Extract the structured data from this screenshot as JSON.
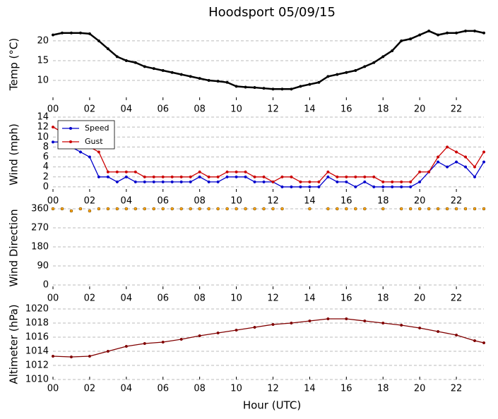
{
  "title": "Hoodsport 05/09/15",
  "xlabel": "Hour (UTC)",
  "chart_data": [
    {
      "type": "line",
      "ylabel": "Temp (°C)",
      "color": "#000000",
      "x": [
        0,
        0.5,
        1,
        1.5,
        2,
        2.5,
        3,
        3.5,
        4,
        4.5,
        5,
        5.5,
        6,
        6.5,
        7,
        7.5,
        8,
        8.5,
        9,
        9.5,
        10,
        10.5,
        11,
        11.5,
        12,
        12.5,
        13,
        13.5,
        14,
        14.5,
        15,
        15.5,
        16,
        16.5,
        17,
        17.5,
        18,
        18.5,
        19,
        19.5,
        20,
        20.5,
        21,
        21.5,
        22,
        22.5,
        23,
        23.5
      ],
      "values": [
        21.5,
        22,
        22,
        22,
        21.8,
        20,
        18,
        16,
        15,
        14.5,
        13.5,
        13,
        12.5,
        12,
        11.5,
        11,
        10.5,
        10,
        9.8,
        9.5,
        8.5,
        8.3,
        8.2,
        8,
        7.8,
        7.8,
        7.8,
        8.5,
        9,
        9.5,
        11,
        11.5,
        12,
        12.5,
        13.5,
        14.5,
        16,
        17.5,
        20,
        20.5,
        21.5,
        22.5,
        21.5,
        22,
        22,
        22.5,
        22.5,
        22
      ],
      "xlim": [
        0,
        23.5
      ],
      "xticks": [
        {
          "value": 0,
          "label": "00"
        },
        {
          "value": 2,
          "label": "02"
        },
        {
          "value": 4,
          "label": "04"
        },
        {
          "value": 6,
          "label": "06"
        },
        {
          "value": 8,
          "label": "08"
        },
        10,
        12,
        14,
        16,
        18,
        20,
        22
      ],
      "ylim": [
        5,
        23.2
      ],
      "yticks": [
        10,
        15,
        20
      ],
      "grid": true
    },
    {
      "type": "line",
      "ylabel": "Wind (mph)",
      "legend": "upper left",
      "x": [
        0,
        0.5,
        1,
        1.5,
        2,
        2.5,
        3,
        3.5,
        4,
        4.5,
        5,
        5.5,
        6,
        6.5,
        7,
        7.5,
        8,
        8.5,
        9,
        9.5,
        10,
        10.5,
        11,
        11.5,
        12,
        12.5,
        13,
        13.5,
        14,
        14.5,
        15,
        15.5,
        16,
        16.5,
        17,
        17.5,
        18,
        18.5,
        19,
        19.5,
        20,
        20.5,
        21,
        21.5,
        22,
        22.5,
        23,
        23.5
      ],
      "series": [
        {
          "name": "Speed",
          "color": "#0000cc",
          "values": [
            9,
            9,
            8,
            7,
            6,
            2,
            2,
            1,
            2,
            1,
            1,
            1,
            1,
            1,
            1,
            1,
            2,
            1,
            1,
            2,
            2,
            2,
            1,
            1,
            1,
            0,
            0,
            0,
            0,
            0,
            2,
            1,
            1,
            0,
            1,
            0,
            0,
            0,
            0,
            0,
            1,
            3,
            5,
            4,
            5,
            4,
            2,
            5
          ]
        },
        {
          "name": "Gust",
          "color": "#cc0000",
          "values": [
            12,
            11,
            10,
            9,
            8,
            7,
            3,
            3,
            3,
            3,
            2,
            2,
            2,
            2,
            2,
            2,
            3,
            2,
            2,
            3,
            3,
            3,
            2,
            2,
            1,
            2,
            2,
            1,
            1,
            1,
            3,
            2,
            2,
            2,
            2,
            2,
            1,
            1,
            1,
            1,
            3,
            3,
            6,
            8,
            7,
            6,
            4,
            7
          ]
        }
      ],
      "xlim": [
        0,
        23.5
      ],
      "xticks": [
        {
          "value": 0,
          "label": "00"
        },
        {
          "value": 2,
          "label": "02"
        },
        {
          "value": 4,
          "label": "04"
        },
        {
          "value": 6,
          "label": "06"
        },
        {
          "value": 8,
          "label": "08"
        },
        10,
        12,
        14,
        16,
        18,
        20,
        22
      ],
      "ylim": [
        -1,
        14
      ],
      "yticks": [
        0,
        2,
        4,
        6,
        8,
        10,
        12,
        14
      ],
      "grid": true
    },
    {
      "type": "scatter",
      "ylabel": "Wind Direction",
      "color": "#ffa500",
      "x": [
        0,
        0.5,
        1,
        1.5,
        2,
        2.5,
        3,
        3.5,
        4,
        4.5,
        5,
        5.5,
        6,
        6.5,
        7,
        7.5,
        8,
        8.5,
        9,
        9.5,
        10,
        10.5,
        11,
        11.5,
        12,
        12.5,
        13,
        13.5,
        14,
        14.5,
        15,
        15.5,
        16,
        16.5,
        17,
        17.5,
        18,
        18.5,
        19,
        19.5,
        20,
        20.5,
        21,
        21.5,
        22,
        22.5,
        23,
        23.5
      ],
      "values": [
        360,
        360,
        350,
        360,
        350,
        360,
        360,
        360,
        360,
        360,
        360,
        360,
        360,
        360,
        360,
        360,
        360,
        360,
        360,
        360,
        360,
        360,
        360,
        360,
        360,
        360,
        null,
        null,
        360,
        null,
        360,
        360,
        360,
        360,
        360,
        null,
        360,
        null,
        360,
        360,
        360,
        360,
        360,
        360,
        360,
        360,
        360,
        360
      ],
      "xlim": [
        0,
        23.5
      ],
      "xticks": [
        {
          "value": 0,
          "label": "00"
        },
        {
          "value": 2,
          "label": "02"
        },
        {
          "value": 4,
          "label": "04"
        },
        {
          "value": 6,
          "label": "06"
        },
        {
          "value": 8,
          "label": "08"
        },
        10,
        12,
        14,
        16,
        18,
        20,
        22
      ],
      "ylim": [
        -20,
        370
      ],
      "yticks": [
        0,
        90,
        180,
        270,
        360
      ],
      "grid": true
    },
    {
      "type": "line",
      "ylabel": "Altimeter (hPa)",
      "color": "#800000",
      "x": [
        0,
        1,
        2,
        3,
        4,
        5,
        6,
        7,
        8,
        9,
        10,
        11,
        12,
        13,
        14,
        15,
        16,
        17,
        18,
        19,
        20,
        21,
        22,
        23,
        23.5
      ],
      "values": [
        1013.3,
        1013.2,
        1013.3,
        1014,
        1014.7,
        1015.1,
        1015.3,
        1015.7,
        1016.2,
        1016.6,
        1017,
        1017.4,
        1017.8,
        1018,
        1018.3,
        1018.6,
        1018.6,
        1018.3,
        1018,
        1017.7,
        1017.3,
        1016.8,
        1016.3,
        1015.5,
        1015.2
      ],
      "xlim": [
        0,
        23.5
      ],
      "xticks": [
        {
          "value": 0,
          "label": "00"
        },
        {
          "value": 2,
          "label": "02"
        },
        {
          "value": 4,
          "label": "04"
        },
        {
          "value": 6,
          "label": "06"
        },
        {
          "value": 8,
          "label": "08"
        },
        10,
        12,
        14,
        16,
        18,
        20,
        22
      ],
      "ylim": [
        1010,
        1020
      ],
      "yticks": [
        1010,
        1012,
        1014,
        1016,
        1018,
        1020
      ],
      "grid": true
    }
  ]
}
